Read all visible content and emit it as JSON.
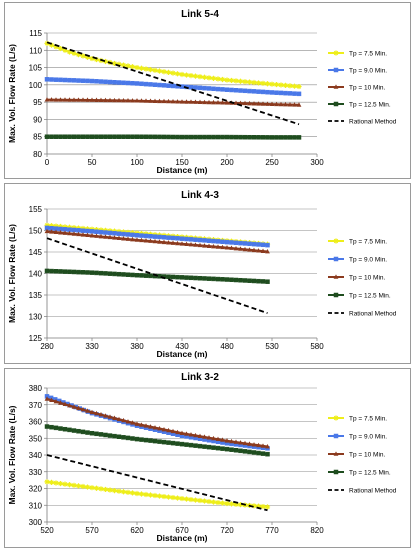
{
  "chart_data": [
    {
      "type": "line",
      "title": "Link 5-4",
      "xlabel": "Distance (m)",
      "ylabel": "Max. Vol. Flow Rate (L/s)",
      "xlim": [
        0,
        300
      ],
      "ylim": [
        80,
        115
      ],
      "xticks": [
        0,
        50,
        100,
        150,
        200,
        250,
        300
      ],
      "yticks": [
        80,
        85,
        90,
        95,
        100,
        105,
        110,
        115
      ],
      "grid": "horizontal",
      "legend": "right",
      "series": [
        {
          "name": "Tp = 7.5 Min.",
          "color": "#eeee1a",
          "marker": "star",
          "x": [
            0,
            25,
            50,
            75,
            100,
            125,
            150,
            175,
            200,
            225,
            250,
            280
          ],
          "y": [
            112,
            109.5,
            107.6,
            106.2,
            105,
            104,
            103,
            102.2,
            101.4,
            100.8,
            100.2,
            99.5
          ]
        },
        {
          "name": "Tp = 9.0 Min.",
          "color": "#4a78e8",
          "marker": "square",
          "x": [
            0,
            50,
            100,
            150,
            200,
            250,
            280
          ],
          "y": [
            101.6,
            101.1,
            100.4,
            99.5,
            98.6,
            97.8,
            97.4
          ]
        },
        {
          "name": "Tp = 10 Min.",
          "color": "#8b3a1e",
          "marker": "triangle",
          "x": [
            0,
            50,
            100,
            150,
            200,
            250,
            280
          ],
          "y": [
            95.7,
            95.6,
            95.4,
            95.1,
            94.8,
            94.4,
            94.2
          ]
        },
        {
          "name": "Tp = 12.5 Min.",
          "color": "#1f4d1f",
          "marker": "square",
          "x": [
            0,
            50,
            100,
            150,
            200,
            250,
            280
          ],
          "y": [
            85.0,
            85.0,
            85.0,
            84.9,
            84.9,
            84.8,
            84.8
          ]
        },
        {
          "name": "Rational Method",
          "color": "#000000",
          "marker": "none",
          "dashed": true,
          "x": [
            0,
            280
          ],
          "y": [
            112.3,
            88.6
          ]
        }
      ]
    },
    {
      "type": "line",
      "title": "Link 4-3",
      "xlabel": "Distance (m)",
      "ylabel": "Max. Vol. Flow Rate (L/s)",
      "xlim": [
        280,
        580
      ],
      "ylim": [
        125,
        155
      ],
      "xticks": [
        280,
        330,
        380,
        430,
        480,
        530,
        580
      ],
      "yticks": [
        125,
        130,
        135,
        140,
        145,
        150,
        155
      ],
      "grid": "horizontal",
      "legend": "right",
      "series": [
        {
          "name": "Tp = 7.5 Min.",
          "color": "#eeee1a",
          "marker": "star",
          "x": [
            280,
            330,
            380,
            430,
            480,
            525
          ],
          "y": [
            151.2,
            150.3,
            149.4,
            148.5,
            147.6,
            146.8
          ]
        },
        {
          "name": "Tp = 9.0 Min.",
          "color": "#4a78e8",
          "marker": "square",
          "x": [
            280,
            330,
            380,
            430,
            480,
            525
          ],
          "y": [
            150.6,
            149.8,
            148.9,
            148.1,
            147.3,
            146.6
          ]
        },
        {
          "name": "Tp = 10 Min.",
          "color": "#8b3a1e",
          "marker": "triangle",
          "x": [
            280,
            330,
            380,
            430,
            480,
            525
          ],
          "y": [
            149.8,
            148.8,
            147.8,
            146.9,
            146.0,
            145.1
          ]
        },
        {
          "name": "Tp = 12.5 Min.",
          "color": "#1f4d1f",
          "marker": "square",
          "x": [
            280,
            330,
            380,
            430,
            480,
            525
          ],
          "y": [
            140.6,
            140.2,
            139.6,
            139.1,
            138.6,
            138.1
          ]
        },
        {
          "name": "Rational Method",
          "color": "#000000",
          "marker": "none",
          "dashed": true,
          "x": [
            280,
            525
          ],
          "y": [
            148.2,
            130.8
          ]
        }
      ]
    },
    {
      "type": "line",
      "title": "Link 3-2",
      "xlabel": "Distance (m)",
      "ylabel": "Max. Vol. Flow Rate (L/s)",
      "xlim": [
        520,
        820
      ],
      "ylim": [
        300,
        380
      ],
      "xticks": [
        520,
        570,
        620,
        670,
        720,
        770,
        820
      ],
      "yticks": [
        300,
        310,
        320,
        330,
        340,
        350,
        360,
        370,
        380
      ],
      "grid": "horizontal",
      "legend": "right",
      "series": [
        {
          "name": "Tp = 7.5 Min.",
          "color": "#eeee1a",
          "marker": "star",
          "x": [
            520,
            570,
            620,
            670,
            720,
            765
          ],
          "y": [
            324,
            320.5,
            317,
            314,
            311,
            309
          ]
        },
        {
          "name": "Tp = 9.0 Min.",
          "color": "#4a78e8",
          "marker": "square",
          "x": [
            520,
            570,
            620,
            670,
            720,
            765
          ],
          "y": [
            375,
            365,
            357.5,
            351.5,
            347,
            344
          ]
        },
        {
          "name": "Tp = 10 Min.",
          "color": "#8b3a1e",
          "marker": "triangle",
          "x": [
            520,
            570,
            620,
            670,
            720,
            765
          ],
          "y": [
            373.5,
            365.5,
            358.5,
            353,
            348.5,
            345
          ]
        },
        {
          "name": "Tp = 12.5 Min.",
          "color": "#1f4d1f",
          "marker": "square",
          "x": [
            520,
            570,
            620,
            670,
            720,
            765
          ],
          "y": [
            357,
            353,
            349.5,
            346.5,
            343.5,
            340.5
          ]
        },
        {
          "name": "Rational Method",
          "color": "#000000",
          "marker": "none",
          "dashed": true,
          "x": [
            520,
            765
          ],
          "y": [
            340,
            307
          ]
        }
      ]
    }
  ]
}
